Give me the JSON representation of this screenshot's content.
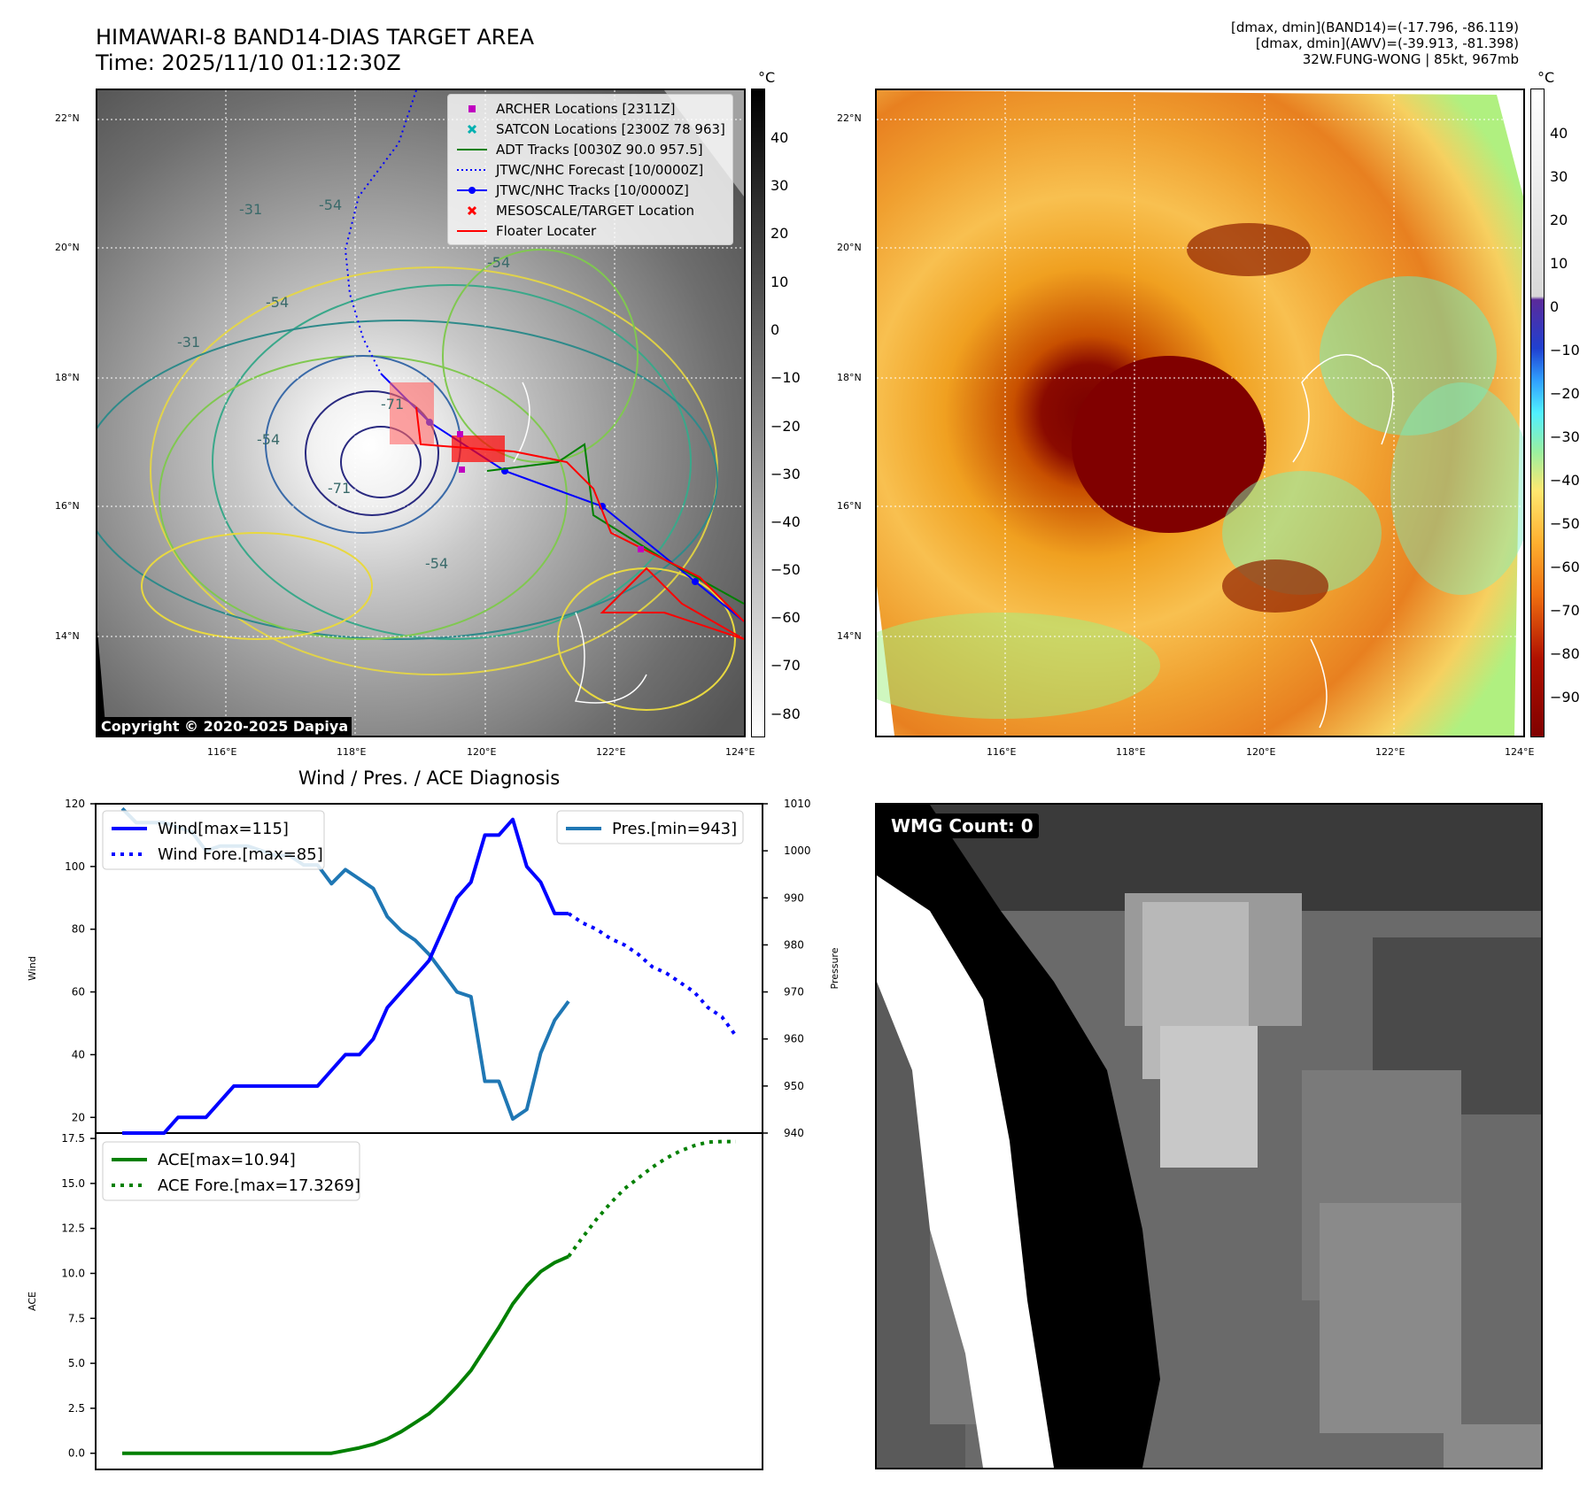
{
  "header": {
    "title_line1": "HIMAWARI-8 BAND14-DIAS TARGET AREA",
    "title_line2": "Time: 2025/11/10 01:12:30Z",
    "right_line1": "[dmax, dmin](BAND14)=(-17.796, -86.119)",
    "right_line2": "[dmax, dmin](AWV)=(-39.913, -81.398)",
    "right_line3": "32W.FUNG-WONG | 85kt, 967mb"
  },
  "map_left": {
    "lat_labels": [
      "22°N",
      "20°N",
      "18°N",
      "16°N",
      "14°N"
    ],
    "lon_labels": [
      "116°E",
      "118°E",
      "120°E",
      "122°E",
      "124°E"
    ],
    "copyright": "Copyright © 2020-2025 Dapiya",
    "colorbar_unit": "°C",
    "colorbar_ticks": [
      "40",
      "30",
      "20",
      "10",
      "0",
      "−10",
      "−20",
      "−30",
      "−40",
      "−50",
      "−60",
      "−70",
      "−80"
    ],
    "legend": [
      {
        "label": "ARCHER Locations [2311Z]",
        "color": "#c000c0",
        "symbol": "square"
      },
      {
        "label": "SATCON Locations [2300Z 78 963]",
        "color": "#00b0b0",
        "symbol": "x"
      },
      {
        "label": "ADT Tracks [0030Z 90.0 957.5]",
        "color": "#008000",
        "symbol": "line"
      },
      {
        "label": "JTWC/NHC Forecast [10/0000Z]",
        "color": "#0000ff",
        "symbol": "dotted"
      },
      {
        "label": "JTWC/NHC Tracks [10/0000Z]",
        "color": "#0000ff",
        "symbol": "line-dot"
      },
      {
        "label": "MESOSCALE/TARGET Location",
        "color": "#ff0000",
        "symbol": "x"
      },
      {
        "label": "Floater Locater",
        "color": "#ff0000",
        "symbol": "line"
      }
    ],
    "contour_labels": [
      "-31",
      "-54",
      "-54",
      "-54",
      "-31",
      "-54",
      "-71",
      "-71",
      "-54"
    ]
  },
  "map_right": {
    "lat_labels": [
      "22°N",
      "20°N",
      "18°N",
      "16°N",
      "14°N"
    ],
    "lon_labels": [
      "116°E",
      "118°E",
      "120°E",
      "122°E",
      "124°E"
    ],
    "colorbar_unit": "°C",
    "colorbar_ticks": [
      "40",
      "30",
      "20",
      "10",
      "0",
      "−10",
      "−20",
      "−30",
      "−40",
      "−50",
      "−60",
      "−70",
      "−80",
      "−90"
    ]
  },
  "wmg": {
    "label": "WMG Count: 0"
  },
  "chart_data": [
    {
      "type": "line",
      "title": "Wind / Pres. / ACE Diagnosis",
      "ylabel": "Wind",
      "ylabel_right": "Pressure",
      "ylim": [
        15,
        120
      ],
      "ylim_right": [
        940,
        1010
      ],
      "yticks": [
        "20",
        "40",
        "60",
        "80",
        "100",
        "120"
      ],
      "yticks_right": [
        "940",
        "950",
        "960",
        "970",
        "980",
        "990",
        "1000",
        "1010"
      ],
      "x_count": 45,
      "series": [
        {
          "name": "Wind[max=115]",
          "axis": "left",
          "color": "#0000ff",
          "style": "solid",
          "x": [
            0,
            1,
            2,
            3,
            4,
            5,
            6,
            7,
            8,
            9,
            10,
            11,
            12,
            13,
            14,
            15,
            16,
            17,
            18,
            19,
            20,
            21,
            22,
            23,
            24,
            25,
            26,
            27,
            28,
            29,
            30,
            31,
            32
          ],
          "values": [
            15,
            15,
            15,
            15,
            20,
            20,
            20,
            25,
            30,
            30,
            30,
            30,
            30,
            30,
            30,
            35,
            40,
            40,
            45,
            55,
            60,
            65,
            70,
            80,
            90,
            95,
            110,
            110,
            115,
            100,
            95,
            85,
            85
          ]
        },
        {
          "name": "Wind Fore.[max=85]",
          "axis": "left",
          "color": "#0000ff",
          "style": "dotted",
          "x": [
            32,
            33,
            34,
            35,
            36,
            37,
            38,
            39,
            40,
            41,
            42,
            43,
            44
          ],
          "values": [
            85,
            82,
            80,
            77,
            75,
            72,
            68,
            66,
            63,
            60,
            55,
            52,
            46
          ]
        },
        {
          "name": "Pres.[min=943]",
          "axis": "right",
          "color": "#1f77b4",
          "style": "solid",
          "x": [
            0,
            1,
            2,
            3,
            4,
            5,
            6,
            7,
            8,
            9,
            10,
            11,
            12,
            13,
            14,
            15,
            16,
            17,
            18,
            19,
            20,
            21,
            22,
            23,
            24,
            25,
            26,
            27,
            28,
            29,
            30,
            31,
            32
          ],
          "values": [
            1009,
            1006,
            1006,
            1006,
            1005,
            1004,
            1000,
            1001,
            1001,
            1001,
            1000,
            999,
            999,
            997,
            997,
            993,
            996,
            994,
            992,
            986,
            983,
            981,
            978,
            974,
            970,
            969,
            951,
            951,
            943,
            945,
            957,
            964,
            968
          ]
        }
      ]
    },
    {
      "type": "line",
      "ylabel": "ACE",
      "ylim": [
        -0.9,
        17.8
      ],
      "yticks": [
        "0.0",
        "2.5",
        "5.0",
        "7.5",
        "10.0",
        "12.5",
        "15.0",
        "17.5"
      ],
      "x_count": 45,
      "series": [
        {
          "name": "ACE[max=10.94]",
          "color": "#008000",
          "style": "solid",
          "x": [
            0,
            4,
            8,
            12,
            15,
            16,
            17,
            18,
            19,
            20,
            21,
            22,
            23,
            24,
            25,
            26,
            27,
            28,
            29,
            30,
            31,
            32
          ],
          "values": [
            0,
            0,
            0,
            0,
            0,
            0.15,
            0.3,
            0.5,
            0.8,
            1.2,
            1.7,
            2.2,
            2.9,
            3.7,
            4.6,
            5.8,
            7.0,
            8.3,
            9.3,
            10.1,
            10.6,
            10.94
          ]
        },
        {
          "name": "ACE Fore.[max=17.3269]",
          "color": "#008000",
          "style": "dotted",
          "x": [
            32,
            33,
            34,
            35,
            36,
            37,
            38,
            39,
            40,
            41,
            42,
            43,
            44
          ],
          "values": [
            10.94,
            12.0,
            13.0,
            13.9,
            14.7,
            15.3,
            15.9,
            16.4,
            16.8,
            17.1,
            17.3,
            17.33,
            17.33
          ]
        }
      ]
    }
  ]
}
